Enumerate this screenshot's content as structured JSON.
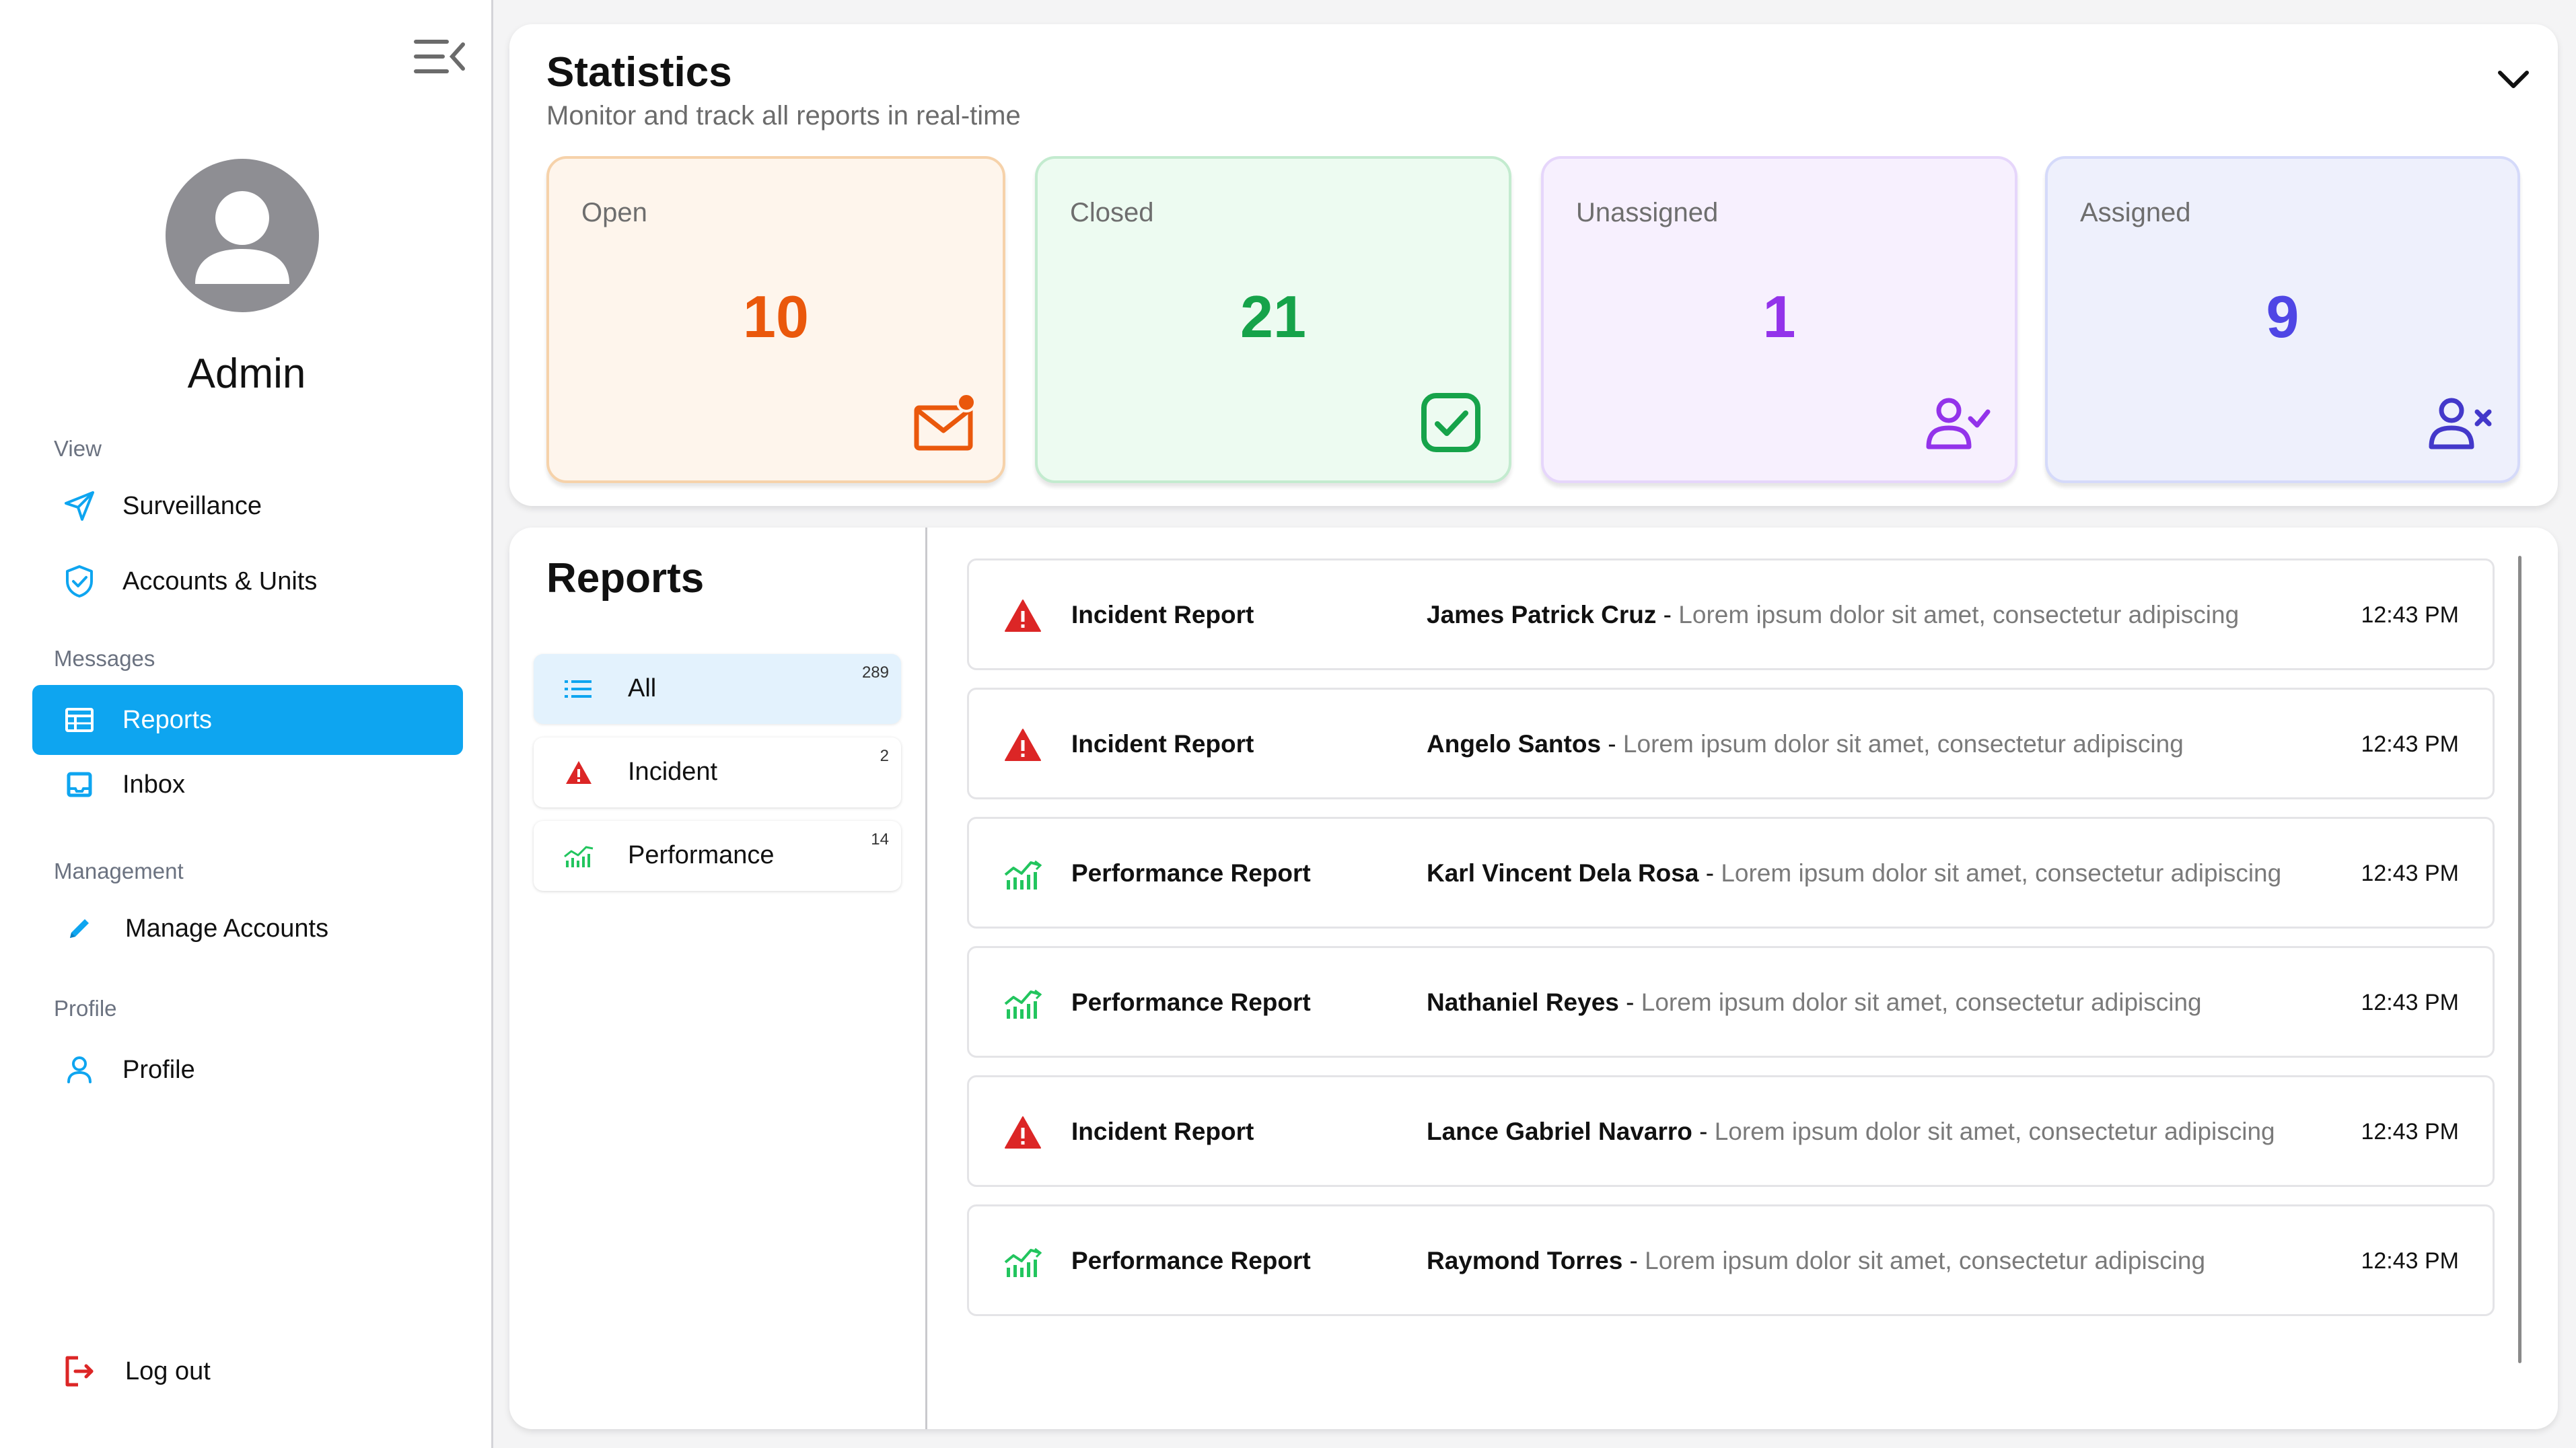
{
  "sidebar": {
    "user_name": "Admin",
    "sections": {
      "view": "View",
      "messages": "Messages",
      "management": "Management",
      "profile": "Profile"
    },
    "items": {
      "surveillance": "Surveillance",
      "accounts_units": "Accounts & Units",
      "reports": "Reports",
      "inbox": "Inbox",
      "manage_accounts": "Manage Accounts",
      "profile": "Profile",
      "logout": "Log out"
    },
    "active_item": "reports"
  },
  "statistics": {
    "title": "Statistics",
    "subtitle": "Monitor and track all reports in real-time",
    "cards": {
      "open": {
        "label": "Open",
        "value": "10",
        "color": "#ea580c"
      },
      "closed": {
        "label": "Closed",
        "value": "21",
        "color": "#16a34a"
      },
      "unassigned": {
        "label": "Unassigned",
        "value": "1",
        "color": "#9333ea"
      },
      "assigned": {
        "label": "Assigned",
        "value": "9",
        "color": "#4f46e5"
      }
    }
  },
  "reports": {
    "title": "Reports",
    "filters": {
      "all": {
        "label": "All",
        "count": "289"
      },
      "incident": {
        "label": "Incident",
        "count": "2"
      },
      "performance": {
        "label": "Performance",
        "count": "14"
      }
    },
    "active_filter": "all",
    "rows": [
      {
        "type": "Incident Report",
        "icon": "warning-icon",
        "name": "James Patrick Cruz",
        "sep": " - ",
        "preview": "Lorem ipsum dolor sit amet, consectetur adipiscing",
        "time": "12:43 PM"
      },
      {
        "type": "Incident Report",
        "icon": "warning-icon",
        "name": "Angelo Santos",
        "sep": " - ",
        "preview": "Lorem ipsum dolor sit amet, consectetur adipiscing",
        "time": "12:43 PM"
      },
      {
        "type": "Performance Report",
        "icon": "performance-chart-icon",
        "name": "Karl Vincent Dela Rosa",
        "sep": " - ",
        "preview": "Lorem ipsum dolor sit amet, consectetur adipiscing",
        "time": "12:43 PM"
      },
      {
        "type": "Performance Report",
        "icon": "performance-chart-icon",
        "name": "Nathaniel Reyes",
        "sep": " - ",
        "preview": "Lorem ipsum dolor sit amet, consectetur adipiscing",
        "time": "12:43 PM"
      },
      {
        "type": "Incident Report",
        "icon": "warning-icon",
        "name": "Lance Gabriel Navarro",
        "sep": " - ",
        "preview": "Lorem ipsum dolor sit amet, consectetur adipiscing",
        "time": "12:43 PM"
      },
      {
        "type": "Performance Report",
        "icon": "performance-chart-icon",
        "name": "Raymond Torres",
        "sep": " - ",
        "preview": "Lorem ipsum dolor sit amet, consectetur adipiscing",
        "time": "12:43 PM"
      }
    ]
  },
  "colors": {
    "accent": "#0ea5f0",
    "incident_red": "#dc2626",
    "performance_green": "#22c55e"
  }
}
